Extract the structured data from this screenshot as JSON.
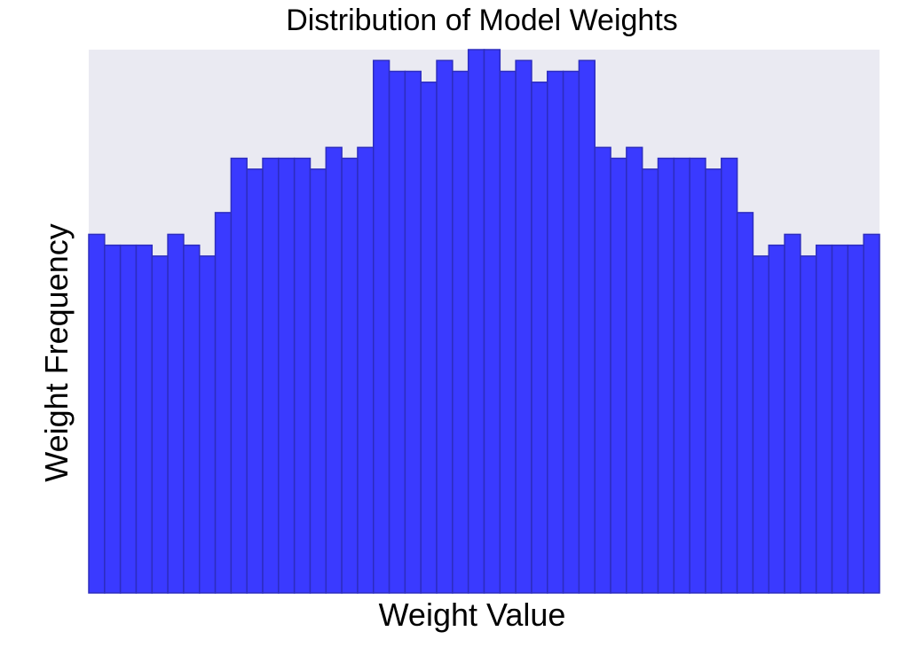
{
  "chart_data": {
    "type": "bar",
    "title": "Distribution of Model Weights",
    "xlabel": "Weight Value",
    "ylabel": "Weight Frequency",
    "ylim": [
      0,
      100
    ],
    "grid": false,
    "legend": "none",
    "values": [
      66,
      64,
      64,
      64,
      62,
      66,
      64,
      62,
      70,
      80,
      78,
      80,
      80,
      80,
      78,
      82,
      80,
      82,
      98,
      96,
      96,
      94,
      98,
      96,
      100,
      100,
      96,
      98,
      94,
      96,
      96,
      98,
      82,
      80,
      82,
      78,
      80,
      80,
      80,
      78,
      80,
      70,
      62,
      64,
      66,
      62,
      64,
      64,
      64,
      66
    ],
    "colors": {
      "bar_fill": "#3a3aff",
      "bar_edge": "#2d2dbf",
      "plot_background": "#eaeaf2"
    }
  }
}
